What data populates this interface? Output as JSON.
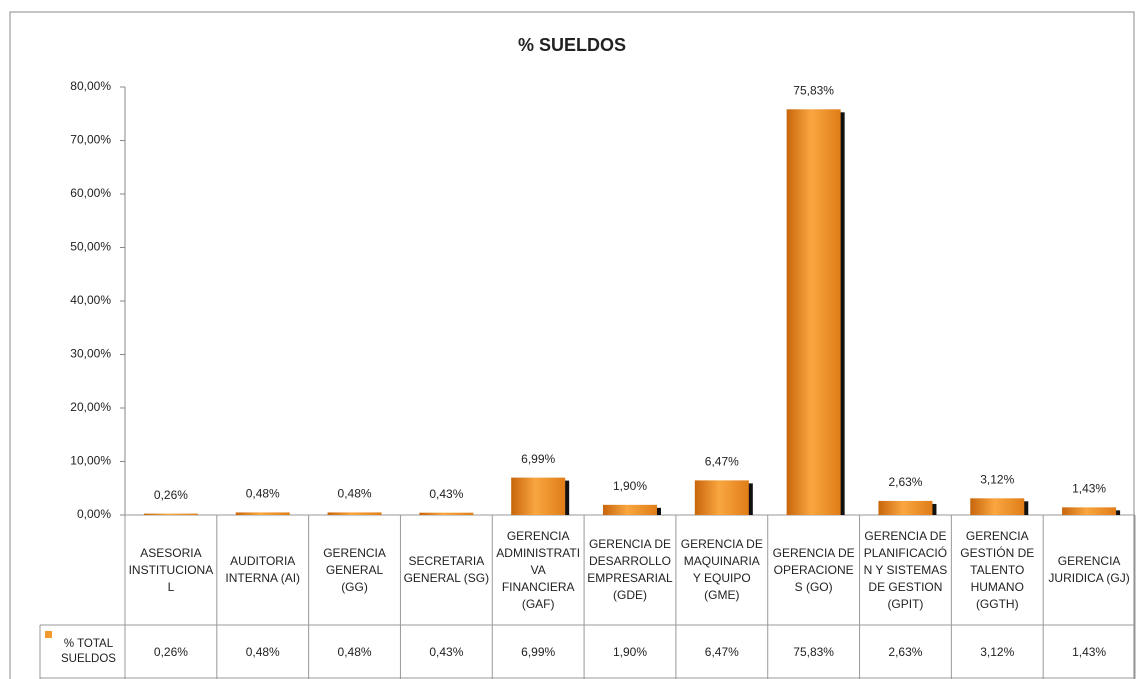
{
  "chart_data": {
    "type": "bar",
    "title": "% SUELDOS",
    "categories": [
      "ASESORIA INSTITUCIONAL",
      "AUDITORIA INTERNA (AI)",
      "GERENCIA GENERAL (GG)",
      "SECRETARIA GENERAL (SG)",
      "GERENCIA ADMINISTRATIVA FINANCIERA (GAF)",
      "GERENCIA DE DESARROLLO EMPRESARIAL (GDE)",
      "GERENCIA DE MAQUINARIA Y EQUIPO (GME)",
      "GERENCIA DE OPERACIONES (GO)",
      "GERENCIA DE PLANIFICACIÓN Y SISTEMAS DE GESTION (GPIT)",
      "GERENCIA GESTIÓN DE TALENTO HUMANO (GGTH)",
      "GERENCIA JURIDICA (GJ)"
    ],
    "series": [
      {
        "name": "% TOTAL SUELDOS",
        "color": "#f39a2e",
        "values": [
          0.26,
          0.48,
          0.48,
          0.43,
          6.99,
          1.9,
          6.47,
          75.83,
          2.63,
          3.12,
          1.43
        ],
        "value_labels": [
          "0,26%",
          "0,48%",
          "0,48%",
          "0,43%",
          "6,99%",
          "1,90%",
          "6,47%",
          "75,83%",
          "2,63%",
          "3,12%",
          "1,43%"
        ]
      }
    ],
    "ylim": [
      0,
      80
    ],
    "yticks": [
      {
        "value": 0,
        "label": "0,00%"
      },
      {
        "value": 10,
        "label": "10,00%"
      },
      {
        "value": 20,
        "label": "20,00%"
      },
      {
        "value": 30,
        "label": "30,00%"
      },
      {
        "value": 40,
        "label": "40,00%"
      },
      {
        "value": 50,
        "label": "50,00%"
      },
      {
        "value": 60,
        "label": "60,00%"
      },
      {
        "value": 70,
        "label": "70,00%"
      },
      {
        "value": 80,
        "label": "80,00%"
      }
    ],
    "grid": false
  }
}
